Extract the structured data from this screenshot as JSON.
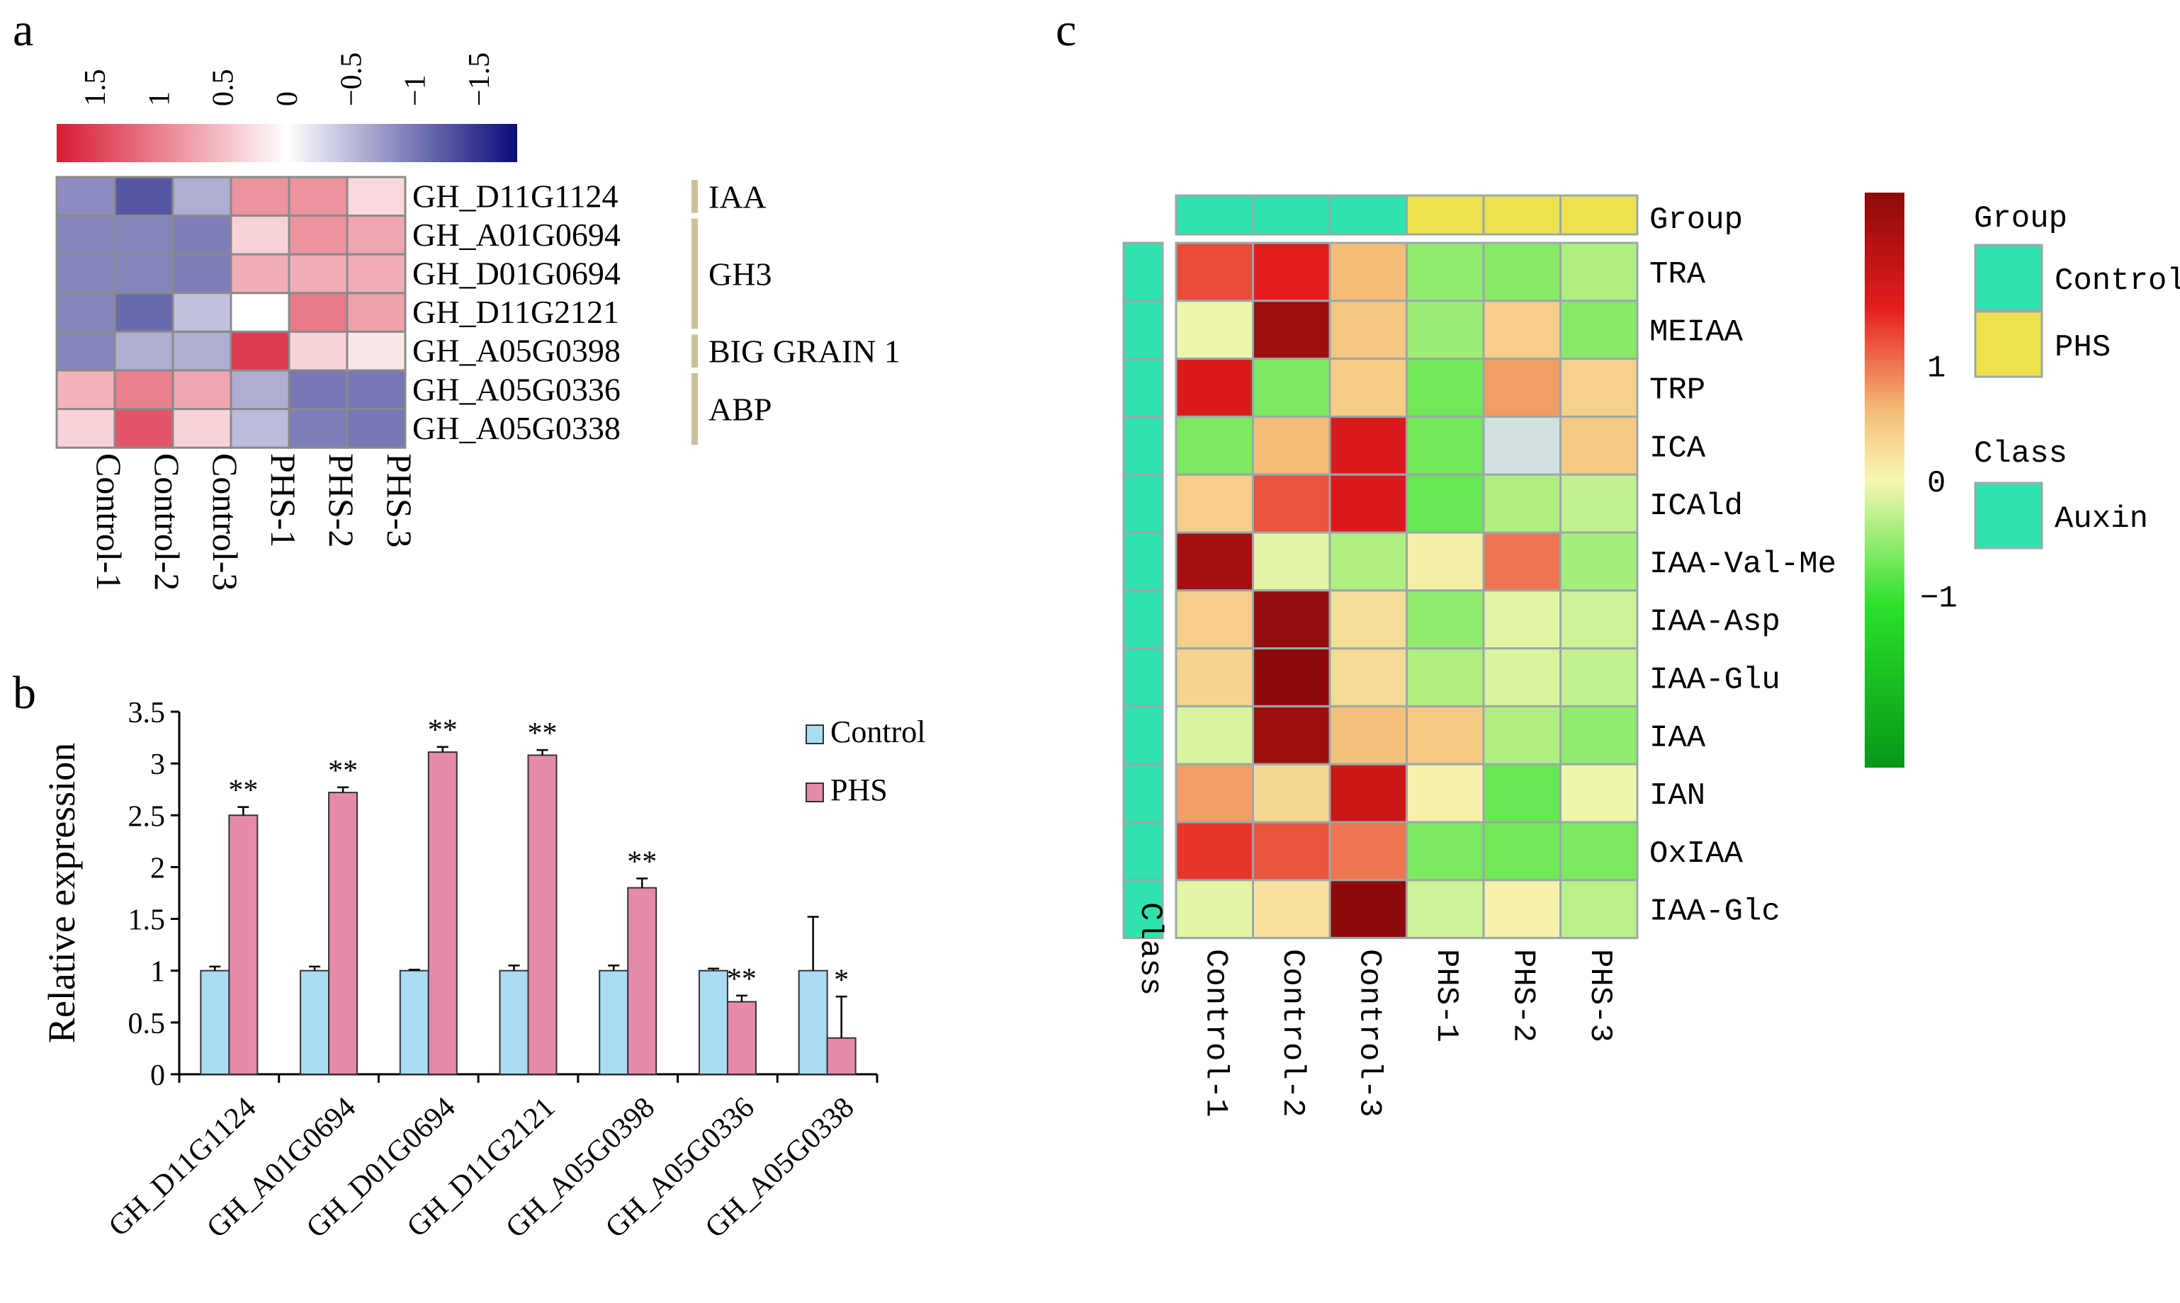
{
  "panel_labels": {
    "a": "a",
    "b": "b",
    "c": "c"
  },
  "chart_data": [
    {
      "type": "heatmap",
      "panel": "a",
      "color_scale": {
        "ticks": [
          "1.5",
          "1",
          "0.5",
          "0",
          "−0.5",
          "−1",
          "−1.5"
        ],
        "tick_values": [
          1.5,
          1,
          0.5,
          0,
          -0.5,
          -1,
          -1.5
        ],
        "range": [
          1.8,
          -1.8
        ],
        "colors": [
          "#d81b34",
          "#ffffff",
          "#0b0b7a"
        ]
      },
      "columns": [
        "Control-1",
        "Control-2",
        "Control-3",
        "PHS-1",
        "PHS-2",
        "PHS-3"
      ],
      "rows": [
        "GH_D11G1124",
        "GH_A01G0694",
        "GH_D01G0694",
        "GH_D11G2121",
        "GH_A05G0398",
        "GH_A05G0336",
        "GH_A05G0338"
      ],
      "values": [
        [
          -0.85,
          -1.25,
          -0.6,
          0.85,
          0.85,
          0.3
        ],
        [
          -0.9,
          -0.9,
          -0.95,
          0.35,
          0.85,
          0.7
        ],
        [
          -0.9,
          -0.9,
          -0.95,
          0.65,
          0.65,
          0.65
        ],
        [
          -0.9,
          -1.1,
          -0.45,
          0.0,
          1.05,
          0.75
        ],
        [
          -0.9,
          -0.6,
          -0.6,
          1.55,
          0.35,
          0.2
        ],
        [
          0.6,
          1.0,
          0.7,
          -0.6,
          -1.0,
          -1.0
        ],
        [
          0.35,
          1.35,
          0.35,
          -0.5,
          -0.95,
          -1.0
        ]
      ],
      "groups": [
        {
          "label": "IAA",
          "start": 0,
          "end": 0
        },
        {
          "label": "GH3",
          "start": 1,
          "end": 3
        },
        {
          "label": "BIG GRAIN 1",
          "start": 4,
          "end": 4
        },
        {
          "label": "ABP",
          "start": 5,
          "end": 6
        }
      ]
    },
    {
      "type": "bar",
      "panel": "b",
      "categories": [
        "GH_D11G1124",
        "GH_A01G0694",
        "GH_D01G0694",
        "GH_D11G2121",
        "GH_A05G0398",
        "GH_A05G0336",
        "GH_A05G0338"
      ],
      "series": [
        {
          "name": "Control",
          "color": "#a9dcf2",
          "values": [
            1.0,
            1.0,
            1.0,
            1.0,
            1.0,
            1.0,
            1.0
          ],
          "errors": [
            0.04,
            0.04,
            0.01,
            0.05,
            0.05,
            0.02,
            0.52
          ]
        },
        {
          "name": "PHS",
          "color": "#e58aab",
          "values": [
            2.5,
            2.72,
            3.11,
            3.08,
            1.8,
            0.7,
            0.35
          ],
          "errors": [
            0.08,
            0.05,
            0.05,
            0.05,
            0.09,
            0.06,
            0.4
          ]
        }
      ],
      "significance": [
        "**",
        "**",
        "**",
        "**",
        "**",
        "**",
        "*"
      ],
      "ylabel": "Relative expression",
      "xlabel": "",
      "ylim": [
        0,
        3.5
      ],
      "yticks": [
        0,
        0.5,
        1,
        1.5,
        2,
        2.5,
        3,
        3.5
      ],
      "ytick_labels": [
        "0",
        "0.5",
        "1",
        "1.5",
        "2",
        "2.5",
        "3",
        "3.5"
      ],
      "legend": [
        "Control",
        "PHS"
      ],
      "legend_position": "top-right"
    },
    {
      "type": "heatmap",
      "panel": "c",
      "columns": [
        "Control-1",
        "Control-2",
        "Control-3",
        "PHS-1",
        "PHS-2",
        "PHS-3"
      ],
      "rows": [
        "TRA",
        "MEIAA",
        "TRP",
        "ICA",
        "ICAld",
        "IAA-Val-Me",
        "IAA-Asp",
        "IAA-Glu",
        "IAA",
        "IAN",
        "OxIAA",
        "IAA-Glc"
      ],
      "values": [
        [
          1.2,
          1.55,
          0.5,
          -1.0,
          -1.05,
          -0.85
        ],
        [
          -0.55,
          2.3,
          0.35,
          -0.95,
          0.2,
          -1.05
        ],
        [
          1.6,
          -1.1,
          0.25,
          -1.15,
          0.7,
          0.15
        ],
        [
          -1.1,
          0.5,
          1.6,
          -1.15,
          0.0,
          0.3
        ],
        [
          0.2,
          1.15,
          1.6,
          -1.2,
          -0.85,
          -0.75
        ],
        [
          2.2,
          -0.6,
          -0.85,
          -0.35,
          0.95,
          -0.9
        ],
        [
          0.2,
          2.4,
          -0.05,
          -1.0,
          -0.6,
          -0.7
        ],
        [
          0.1,
          2.45,
          0.0,
          -0.85,
          -0.65,
          -0.75
        ],
        [
          -0.65,
          2.3,
          0.45,
          0.3,
          -0.85,
          -1.0
        ],
        [
          0.7,
          0.05,
          1.75,
          -0.4,
          -1.2,
          -0.55
        ],
        [
          1.35,
          1.15,
          0.95,
          -1.1,
          -1.15,
          -1.1
        ],
        [
          -0.6,
          -0.1,
          2.45,
          -0.7,
          -0.4,
          -0.8
        ]
      ],
      "missing_cell_color": "#d4dfe2",
      "missing_cells": [
        [
          3,
          4
        ]
      ],
      "group_bar": {
        "label": "Group",
        "values": [
          "Control",
          "Control",
          "Control",
          "PHS",
          "PHS",
          "PHS"
        ]
      },
      "class_bar": {
        "label": "Class",
        "value": "Auxin"
      },
      "color_scale": {
        "ticks": [
          "1",
          "0",
          "−1"
        ],
        "tick_values": [
          1,
          0,
          -1
        ],
        "range": [
          2.5,
          -2.5
        ],
        "colors": [
          "#8b0a0a",
          "#e41d1d",
          "#f5bd78",
          "#f7f7b2",
          "#2ae02a",
          "#08961a"
        ]
      },
      "legend": {
        "group_title": "Group",
        "groups": [
          {
            "label": "Control",
            "color": "#2ee3ad"
          },
          {
            "label": "PHS",
            "color": "#ede24d"
          }
        ],
        "class_title": "Class",
        "classes": [
          {
            "label": "Auxin",
            "color": "#2ee3ad"
          }
        ]
      }
    }
  ]
}
